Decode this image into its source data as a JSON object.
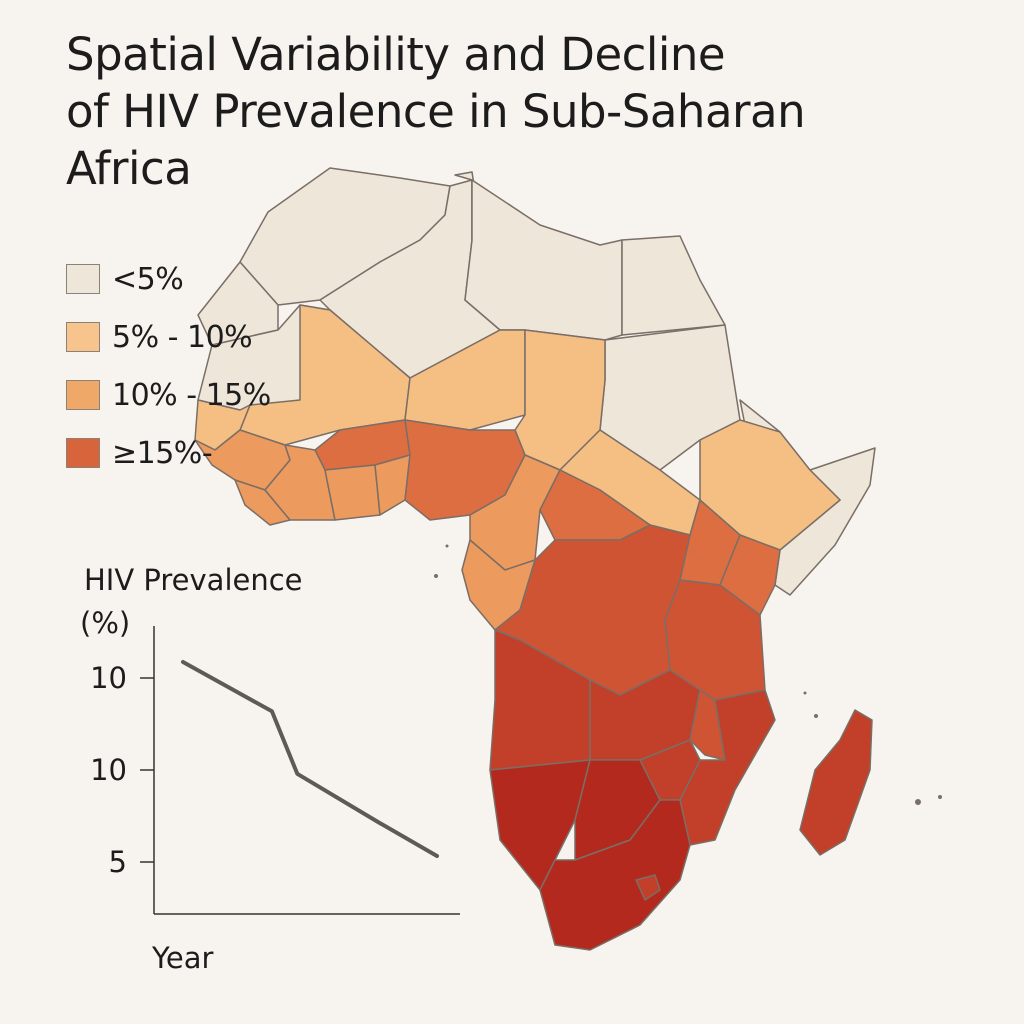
{
  "title": {
    "line1": "Spatial Variability and Decline",
    "line2": "of HIV Prevalence in Sub-Saharan",
    "line3": "Africa"
  },
  "legend": [
    {
      "label": "<5%",
      "color": "#efe6da"
    },
    {
      "label": "5% - 10%",
      "color": "#f6c48c"
    },
    {
      "label": "10% - 15%",
      "color": "#f0a868"
    },
    {
      "label": "≥15%-",
      "color": "#d8643c"
    }
  ],
  "map_colors": {
    "lt5": "#efe6da",
    "p5_10": "#f5bf84",
    "p10_15": "#ed9a5e",
    "p15_a": "#dd6e42",
    "p15_b": "#cf5434",
    "p15_c": "#c2402a",
    "p15_d": "#b3291e",
    "border": "#7a6e66"
  },
  "chart_data": {
    "type": "line",
    "ylabel_line1": "HIV Prevalence",
    "ylabel_line2": "(%)",
    "xlabel": "Year",
    "y_ticks": [
      "10",
      "10",
      "5"
    ],
    "series": [
      {
        "x": [
          0,
          1,
          2,
          3,
          4
        ],
        "y": [
          10.8,
          9.3,
          7.4,
          5.9,
          4.9
        ]
      }
    ]
  }
}
